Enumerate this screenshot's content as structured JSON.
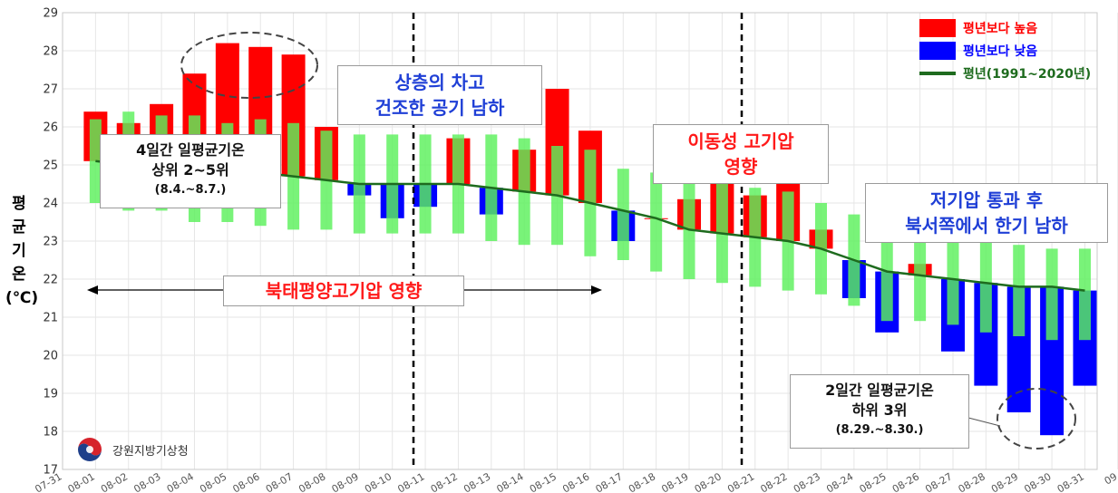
{
  "chart_data": {
    "type": "bar",
    "ylim": [
      17,
      29
    ],
    "yticks": [
      17,
      18,
      19,
      20,
      21,
      22,
      23,
      24,
      25,
      26,
      27,
      28,
      29
    ],
    "ylabel_chars": [
      "평",
      "균",
      "기",
      "온",
      "(℃)"
    ],
    "x_tick_labels": [
      "07-31",
      "08-01",
      "08-02",
      "08-03",
      "08-04",
      "08-05",
      "08-06",
      "08-07",
      "08-08",
      "08-09",
      "08-10",
      "08-11",
      "08-12",
      "08-13",
      "08-14",
      "08-15",
      "08-16",
      "08-17",
      "08-18",
      "08-19",
      "08-20",
      "08-21",
      "08-22",
      "08-23",
      "08-24",
      "08-25",
      "08-26",
      "08-27",
      "08-28",
      "08-29",
      "08-30",
      "08-31",
      "09"
    ],
    "grid": true,
    "days": [
      "08-01",
      "08-02",
      "08-03",
      "08-04",
      "08-05",
      "08-06",
      "08-07",
      "08-08",
      "08-09",
      "08-10",
      "08-11",
      "08-12",
      "08-13",
      "08-14",
      "08-15",
      "08-16",
      "08-17",
      "08-18",
      "08-19",
      "08-20",
      "08-21",
      "08-22",
      "08-23",
      "08-24",
      "08-25",
      "08-26",
      "08-27",
      "08-28",
      "08-29",
      "08-30",
      "08-31"
    ],
    "normal": [
      25.1,
      25.0,
      25.0,
      24.9,
      24.9,
      24.8,
      24.7,
      24.6,
      24.5,
      24.5,
      24.5,
      24.5,
      24.4,
      24.3,
      24.2,
      24.0,
      23.8,
      23.6,
      23.3,
      23.2,
      23.1,
      23.0,
      22.8,
      22.5,
      22.2,
      22.1,
      22.0,
      21.9,
      21.8,
      21.8,
      21.7
    ],
    "observed": [
      26.4,
      26.1,
      26.6,
      27.4,
      28.2,
      28.1,
      27.9,
      26.0,
      24.2,
      23.6,
      23.9,
      25.7,
      23.7,
      25.4,
      27.0,
      25.9,
      23.0,
      23.6,
      24.1,
      24.8,
      24.2,
      24.7,
      23.3,
      21.5,
      20.6,
      22.4,
      20.1,
      19.2,
      18.5,
      17.9,
      19.2
    ],
    "range_low": [
      24.0,
      23.8,
      23.8,
      23.5,
      23.5,
      23.4,
      23.3,
      23.3,
      23.2,
      23.2,
      23.2,
      23.2,
      23.0,
      22.9,
      22.9,
      22.6,
      22.5,
      22.2,
      22.0,
      21.9,
      21.8,
      21.7,
      21.6,
      21.3,
      20.9,
      20.9,
      20.8,
      20.6,
      20.5,
      20.4,
      20.4
    ],
    "range_high": [
      26.2,
      26.4,
      26.3,
      26.3,
      26.1,
      26.2,
      26.1,
      25.9,
      25.8,
      25.8,
      25.8,
      25.8,
      25.8,
      25.7,
      25.5,
      25.4,
      24.9,
      24.8,
      24.6,
      24.5,
      24.4,
      24.3,
      24.0,
      23.7,
      23.5,
      23.3,
      23.1,
      23.0,
      22.9,
      22.8,
      22.8
    ],
    "dividers_after": [
      "08-10",
      "08-20"
    ],
    "legend": {
      "above": "평년보다 높음",
      "below": "평년보다 낮음",
      "normal": "평년(1991~2020년)",
      "position": "top-right"
    },
    "colors": {
      "above": "#ff0000",
      "below": "#0000ff",
      "range": "#5cf05c",
      "normal_line": "#1e6b1e"
    },
    "annotations": {
      "top4_lines": [
        "4일간 일평균기온",
        "상위 2~5위",
        "(8.4.~8.7.)"
      ],
      "cold_air_lines": [
        "상층의 차고",
        "건조한 공기 남하"
      ],
      "migratory_lines": [
        "이동성 고기압",
        "영향"
      ],
      "low_pressure_lines": [
        "저기압 통과 후",
        "북서쪽에서 한기 남하"
      ],
      "pacific_high": "북태평양고기압 영향",
      "bottom3_lines": [
        "2일간 일평균기온",
        "하위 3위",
        "(8.29.~8.30.)"
      ]
    }
  },
  "logo": {
    "text": "강원지방기상청"
  }
}
